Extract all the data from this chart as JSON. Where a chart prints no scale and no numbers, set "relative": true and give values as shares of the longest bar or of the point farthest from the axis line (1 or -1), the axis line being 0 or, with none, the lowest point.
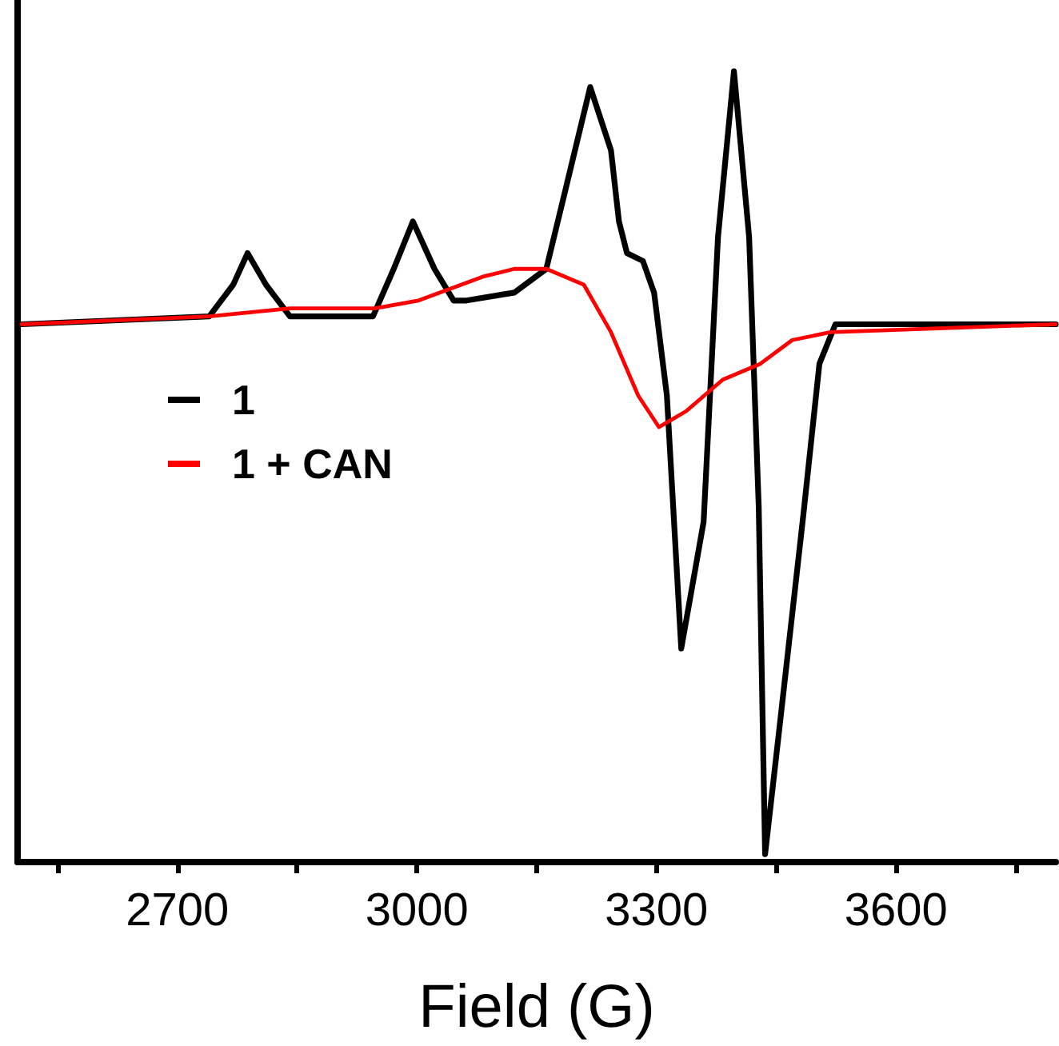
{
  "chart_data": {
    "type": "line",
    "xlabel": "Field (G)",
    "relative": true,
    "legend": "left",
    "grid": false,
    "marker": "none",
    "line_style": "solid",
    "xlim": [
      2500,
      3800
    ],
    "xticks": [
      {
        "value": 2550,
        "label": null
      },
      2700,
      {
        "value": 2850,
        "label": null
      },
      3000,
      {
        "value": 3150,
        "label": null
      },
      3300,
      {
        "value": 3450,
        "label": null
      },
      3600,
      {
        "value": 3750,
        "label": null
      }
    ],
    "series": [
      {
        "name": "1",
        "color": "#000000",
        "x": [
          2505,
          2740,
          2770,
          2788,
          2811,
          2841,
          2945,
          2971,
          2995,
          3022,
          3046,
          3062,
          3122,
          3162,
          3186,
          3217,
          3243,
          3253,
          3263,
          3283,
          3297,
          3313,
          3331,
          3359,
          3377,
          3397,
          3416,
          3428,
          3436,
          3454,
          3484,
          3504,
          3524,
          3605,
          3800
        ],
        "values": [
          0.68,
          0.69,
          0.73,
          0.77,
          0.73,
          0.69,
          0.69,
          0.75,
          0.81,
          0.75,
          0.71,
          0.71,
          0.72,
          0.75,
          0.85,
          0.98,
          0.9,
          0.81,
          0.77,
          0.76,
          0.72,
          0.59,
          0.27,
          0.43,
          0.79,
          1.0,
          0.79,
          0.45,
          0.01,
          0.17,
          0.44,
          0.63,
          0.68,
          0.68,
          0.68
        ]
      },
      {
        "name": "1 + CAN",
        "color": "#ff0000",
        "x": [
          2505,
          2740,
          2841,
          2947,
          3002,
          3082,
          3122,
          3162,
          3209,
          3243,
          3277,
          3303,
          3337,
          3383,
          3430,
          3470,
          3518,
          3800
        ],
        "values": [
          0.68,
          0.69,
          0.7,
          0.7,
          0.71,
          0.74,
          0.75,
          0.75,
          0.73,
          0.67,
          0.59,
          0.55,
          0.57,
          0.61,
          0.63,
          0.66,
          0.67,
          0.68
        ]
      }
    ]
  }
}
